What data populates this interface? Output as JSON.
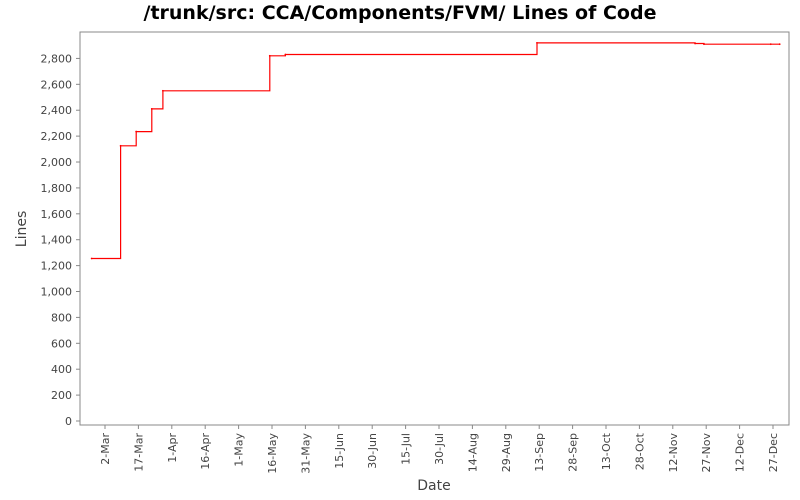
{
  "chart_data": {
    "type": "line",
    "title": "/trunk/src: CCA/Components/FVM/ Lines of Code",
    "xlabel": "Date",
    "ylabel": "Lines",
    "ylim": [
      0,
      2950
    ],
    "yticks": [
      0,
      200,
      400,
      600,
      800,
      1000,
      1200,
      1400,
      1600,
      1800,
      2000,
      2200,
      2400,
      2600,
      2800
    ],
    "ytick_labels": [
      "0",
      "200",
      "400",
      "600",
      "800",
      "1,000",
      "1,200",
      "1,400",
      "1,600",
      "1,800",
      "2,000",
      "2,200",
      "2,400",
      "2,600",
      "2,800"
    ],
    "xticks": [
      "2-Mar",
      "17-Mar",
      "1-Apr",
      "16-Apr",
      "1-May",
      "16-May",
      "31-May",
      "15-Jun",
      "30-Jun",
      "15-Jul",
      "30-Jul",
      "14-Aug",
      "29-Aug",
      "13-Sep",
      "28-Sep",
      "13-Oct",
      "28-Oct",
      "12-Nov",
      "27-Nov",
      "12-Dec",
      "27-Dec"
    ],
    "grid": false,
    "line_color": "#ff0000",
    "step": true,
    "series": [
      {
        "x": [
          "24-Feb",
          "9-Mar",
          "16-Mar",
          "23-Mar",
          "28-Mar",
          "15-May",
          "22-May",
          "12-Sep",
          "22-Nov",
          "26-Nov",
          "26-Dec",
          "30-Dec"
        ],
        "values": [
          1255,
          2125,
          2235,
          2410,
          2550,
          2820,
          2830,
          2920,
          2915,
          2910,
          2910,
          2910
        ]
      }
    ]
  }
}
